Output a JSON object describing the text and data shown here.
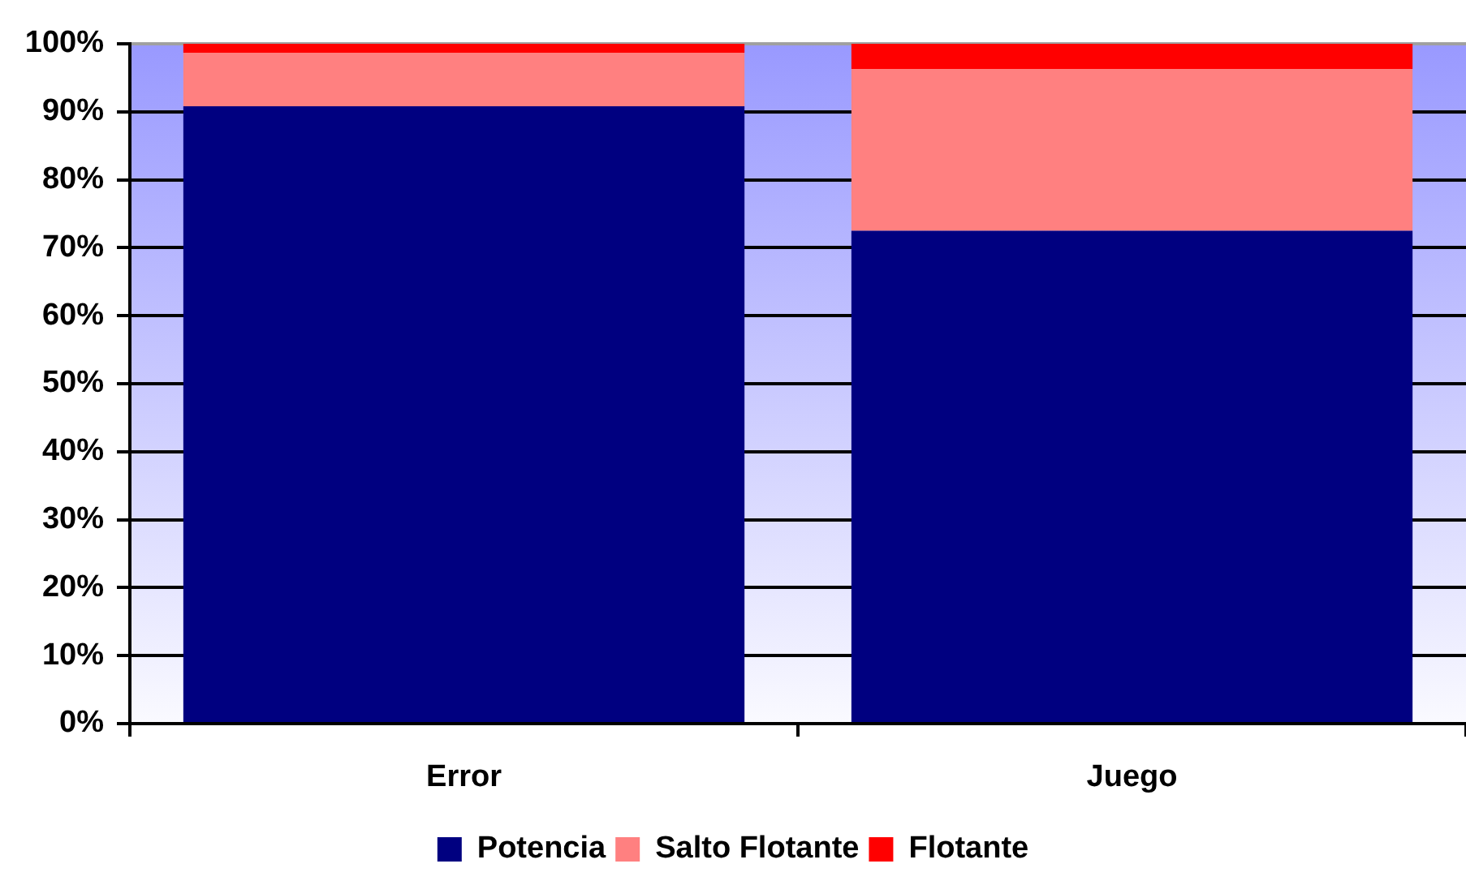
{
  "chart_data": {
    "type": "bar",
    "categories": [
      "Error",
      "Juego"
    ],
    "series": [
      {
        "name": "Potencia",
        "color": "#000080",
        "values": [
          90.8,
          72.5
        ]
      },
      {
        "name": "Salto Flotante",
        "color": "#ff8080",
        "values": [
          7.9,
          23.8
        ]
      },
      {
        "name": "Flotante",
        "color": "#ff0000",
        "values": [
          1.3,
          3.7
        ]
      }
    ],
    "stacked": true,
    "ylim": [
      0,
      100
    ],
    "yticks": [
      {
        "value": 0,
        "label": "0%"
      },
      {
        "value": 10,
        "label": "10%"
      },
      {
        "value": 20,
        "label": "20%"
      },
      {
        "value": 30,
        "label": "30%"
      },
      {
        "value": 40,
        "label": "40%"
      },
      {
        "value": 50,
        "label": "50%"
      },
      {
        "value": 60,
        "label": "60%"
      },
      {
        "value": 70,
        "label": "70%"
      },
      {
        "value": 80,
        "label": "80%"
      },
      {
        "value": 90,
        "label": "90%"
      },
      {
        "value": 100,
        "label": "100%"
      }
    ],
    "grid": "y",
    "legend": "bottom"
  }
}
